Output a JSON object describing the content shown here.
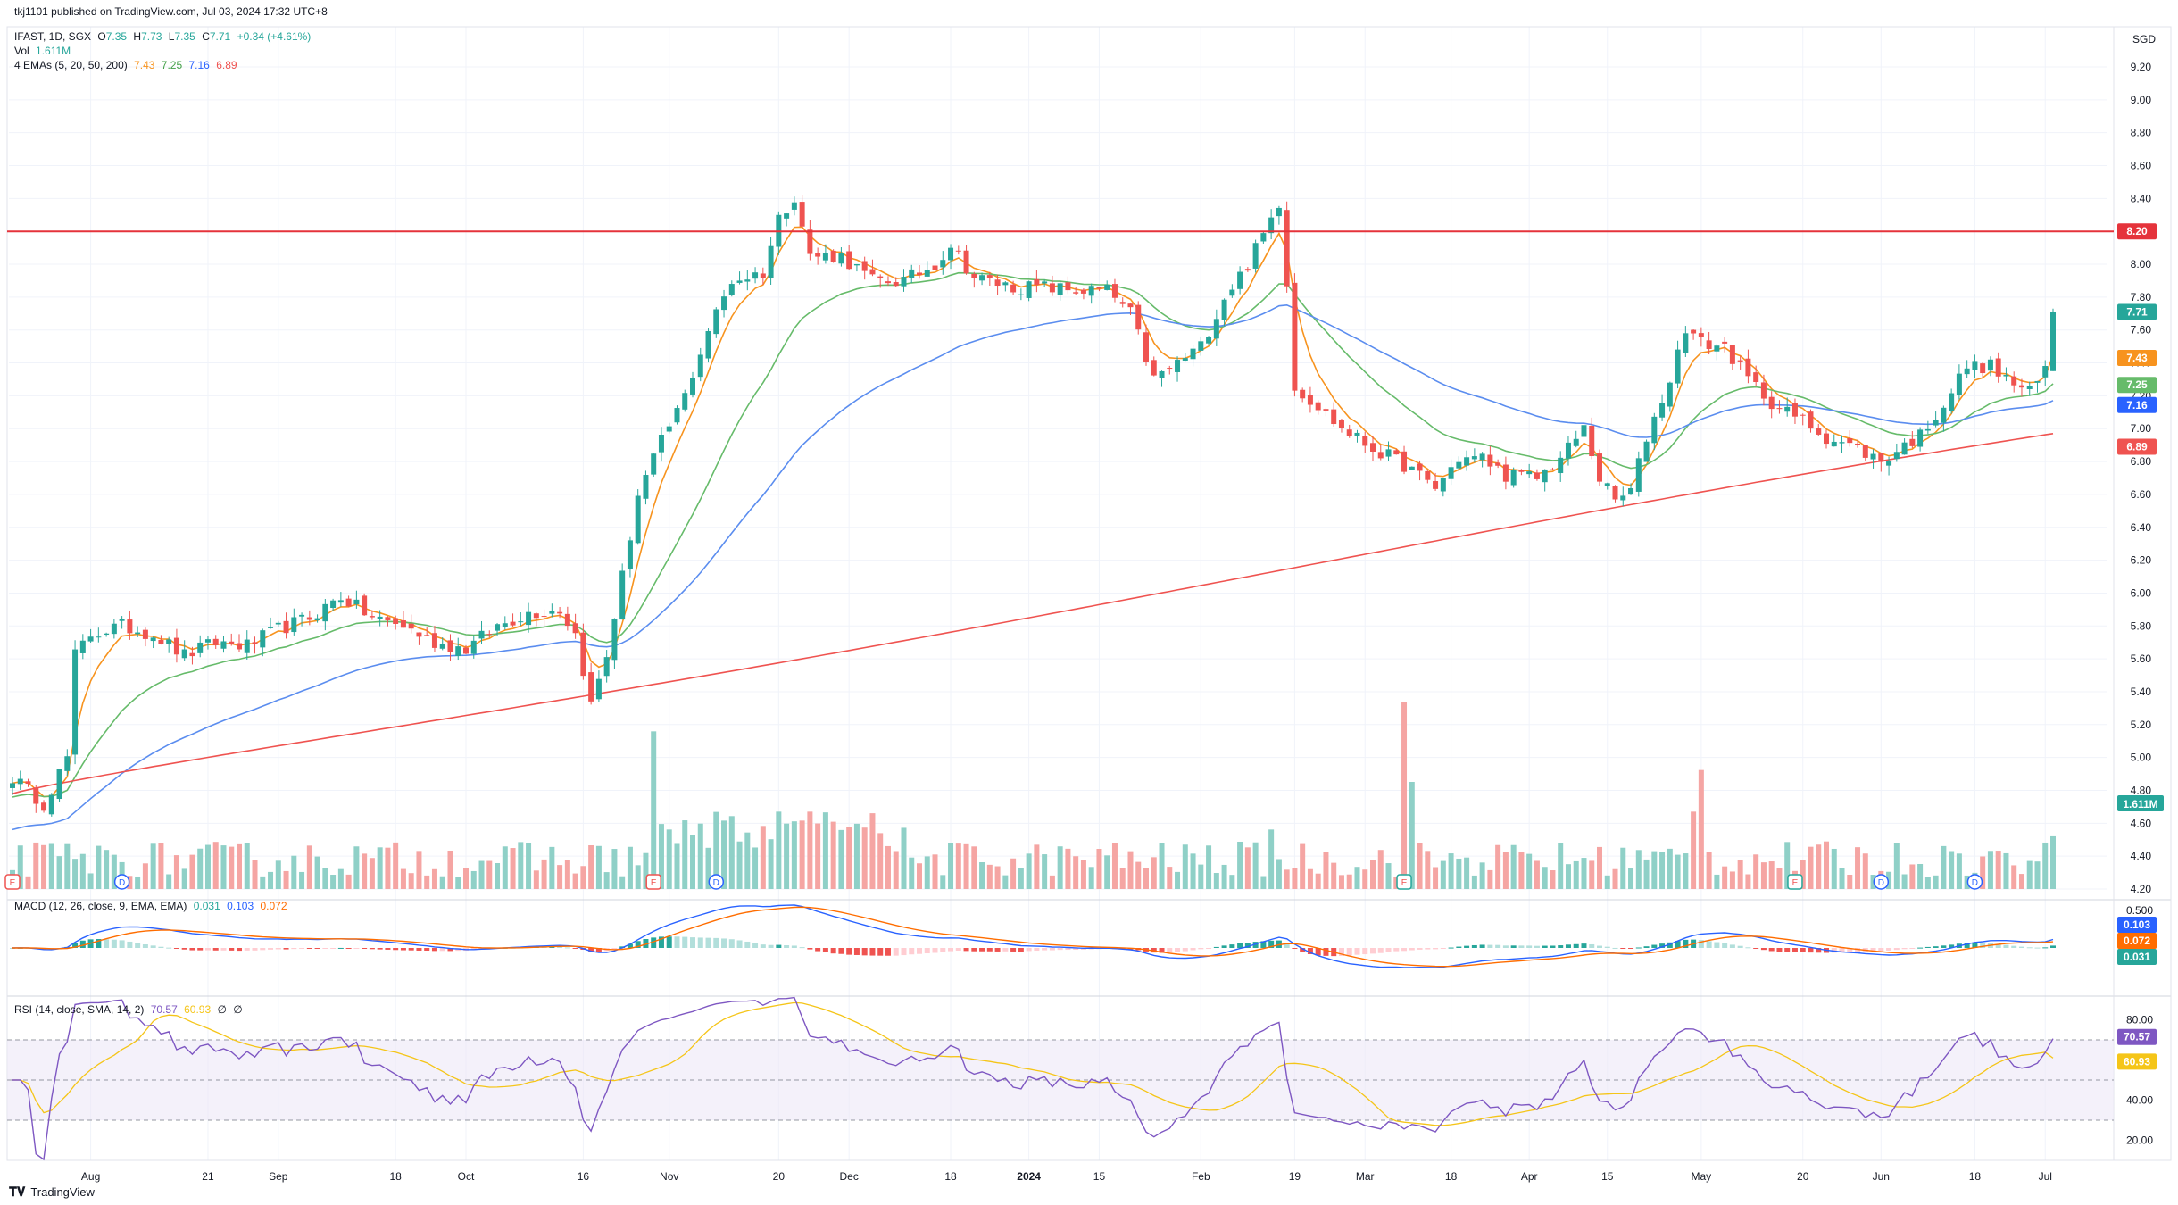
{
  "header": {
    "published": "tkj1101 published on TradingView.com, Jul 03, 2024 17:32 UTC+8",
    "symbol": "IFAST, 1D, SGX",
    "ohlc": {
      "o_label": "O",
      "o": "7.35",
      "h_label": "H",
      "h": "7.73",
      "l_label": "L",
      "l": "7.35",
      "c_label": "C",
      "c": "7.71",
      "change": "+0.34 (+4.61%)"
    },
    "vol_label": "Vol",
    "vol_value": "1.611M",
    "ema_label": "4 EMAs (5, 20, 50, 200)",
    "ema_values": [
      "7.43",
      "7.25",
      "7.16",
      "6.89"
    ]
  },
  "currency": "SGD",
  "colors": {
    "up": "#26a69a",
    "down": "#ef5350",
    "up_vol": "#8fd0c7",
    "down_vol": "#f5a5a3",
    "ema5": "#f7931e",
    "ema20": "#66bb6a",
    "ema50": "#5b8def",
    "ema200": "#ef5350",
    "resistance": "#e5333b",
    "macd": "#2962ff",
    "signal": "#ff6d00",
    "rsi": "#7e57c2",
    "rsi_ma": "#f5c518"
  },
  "resistance": {
    "value": 8.2,
    "label": "8.20"
  },
  "price_tags": [
    {
      "label": "7.71",
      "value": 7.71,
      "color": "#26a69a"
    },
    {
      "label": "7.43",
      "value": 7.43,
      "color": "#f7931e"
    },
    {
      "label": "7.25",
      "value": 7.25,
      "color": "#66bb6a"
    },
    {
      "label": "7.16",
      "value": 7.16,
      "color": "#2962ff"
    },
    {
      "label": "6.89",
      "value": 6.89,
      "color": "#ef5350"
    }
  ],
  "vol_tag": {
    "label": "1.611M",
    "color": "#26a69a"
  },
  "macd": {
    "label": "MACD (12, 26, close, 9, EMA, EMA)",
    "values": [
      "0.031",
      "0.103",
      "0.072"
    ],
    "axis_top": "0.500",
    "tags": [
      {
        "label": "0.103",
        "color": "#2962ff"
      },
      {
        "label": "0.072",
        "color": "#ff6d00"
      },
      {
        "label": "0.031",
        "color": "#26a69a"
      }
    ]
  },
  "rsi": {
    "label": "RSI (14, close, SMA, 14, 2)",
    "values": [
      "70.57",
      "60.93",
      "∅",
      "∅"
    ],
    "ticks": [
      "80.00",
      "60.00",
      "40.00",
      "20.00"
    ],
    "tags": [
      {
        "label": "70.57",
        "color": "#7e57c2"
      },
      {
        "label": "60.93",
        "color": "#f5c518"
      }
    ]
  },
  "events": [
    {
      "type": "E",
      "date": 0
    },
    {
      "type": "D",
      "date": 14
    },
    {
      "type": "E",
      "date": 82
    },
    {
      "type": "D",
      "date": 90
    },
    {
      "type": "E",
      "date": 178
    },
    {
      "type": "E",
      "date": 228
    },
    {
      "type": "D",
      "date": 239
    },
    {
      "type": "D",
      "date": 251
    },
    {
      "type": "⚡",
      "date": 281
    }
  ],
  "footer": {
    "brand": "TradingView"
  },
  "chart_data": {
    "type": "candlestick",
    "title": "IFAST, 1D, SGX",
    "ylim": [
      4.2,
      9.35
    ],
    "y_ticks": [
      "9.20",
      "9.00",
      "8.80",
      "8.60",
      "8.40",
      "8.20",
      "8.00",
      "7.80",
      "7.60",
      "7.40",
      "7.20",
      "7.00",
      "6.80",
      "6.60",
      "6.40",
      "6.20",
      "6.00",
      "5.80",
      "5.60",
      "5.40",
      "5.20",
      "5.00",
      "4.80",
      "4.60",
      "4.40",
      "4.20"
    ],
    "x_ticks": [
      {
        "label": "Aug",
        "i": 10
      },
      {
        "label": "21",
        "i": 25
      },
      {
        "label": "Sep",
        "i": 34
      },
      {
        "label": "18",
        "i": 49
      },
      {
        "label": "Oct",
        "i": 58
      },
      {
        "label": "16",
        "i": 73
      },
      {
        "label": "Nov",
        "i": 84
      },
      {
        "label": "20",
        "i": 98
      },
      {
        "label": "Dec",
        "i": 107
      },
      {
        "label": "18",
        "i": 120
      },
      {
        "label": "2024",
        "i": 130
      },
      {
        "label": "15",
        "i": 139
      },
      {
        "label": "Feb",
        "i": 152
      },
      {
        "label": "19",
        "i": 164
      },
      {
        "label": "Mar",
        "i": 173
      },
      {
        "label": "18",
        "i": 184
      },
      {
        "label": "Apr",
        "i": 194
      },
      {
        "label": "15",
        "i": 204
      },
      {
        "label": "May",
        "i": 216
      },
      {
        "label": "20",
        "i": 229
      },
      {
        "label": "Jun",
        "i": 239
      },
      {
        "label": "18",
        "i": 251
      },
      {
        "label": "Jul",
        "i": 260
      }
    ],
    "anchors": [
      [
        0,
        4.88
      ],
      [
        4,
        4.72
      ],
      [
        7,
        5.0
      ],
      [
        8,
        5.62
      ],
      [
        10,
        5.75
      ],
      [
        14,
        5.8
      ],
      [
        18,
        5.75
      ],
      [
        22,
        5.62
      ],
      [
        26,
        5.7
      ],
      [
        30,
        5.68
      ],
      [
        34,
        5.78
      ],
      [
        38,
        5.85
      ],
      [
        42,
        5.98
      ],
      [
        46,
        5.85
      ],
      [
        50,
        5.8
      ],
      [
        54,
        5.7
      ],
      [
        58,
        5.66
      ],
      [
        62,
        5.8
      ],
      [
        66,
        5.88
      ],
      [
        70,
        5.9
      ],
      [
        72,
        5.75
      ],
      [
        74,
        5.32
      ],
      [
        76,
        5.62
      ],
      [
        78,
        6.1
      ],
      [
        80,
        6.6
      ],
      [
        83,
        6.92
      ],
      [
        86,
        7.2
      ],
      [
        89,
        7.6
      ],
      [
        92,
        7.9
      ],
      [
        96,
        7.95
      ],
      [
        98,
        8.28
      ],
      [
        100,
        8.42
      ],
      [
        102,
        8.05
      ],
      [
        106,
        8.05
      ],
      [
        110,
        7.9
      ],
      [
        114,
        7.9
      ],
      [
        118,
        8.0
      ],
      [
        120,
        8.12
      ],
      [
        123,
        7.92
      ],
      [
        128,
        7.86
      ],
      [
        132,
        7.86
      ],
      [
        136,
        7.84
      ],
      [
        140,
        7.84
      ],
      [
        143,
        7.7
      ],
      [
        146,
        7.3
      ],
      [
        149,
        7.4
      ],
      [
        152,
        7.5
      ],
      [
        155,
        7.8
      ],
      [
        158,
        8.0
      ],
      [
        160,
        8.18
      ],
      [
        162,
        8.38
      ],
      [
        163,
        7.9
      ],
      [
        164,
        7.25
      ],
      [
        166,
        7.18
      ],
      [
        170,
        7.0
      ],
      [
        174,
        6.88
      ],
      [
        178,
        6.78
      ],
      [
        182,
        6.64
      ],
      [
        185,
        6.82
      ],
      [
        188,
        6.82
      ],
      [
        191,
        6.72
      ],
      [
        195,
        6.7
      ],
      [
        198,
        6.82
      ],
      [
        201,
        7.0
      ],
      [
        203,
        6.7
      ],
      [
        205,
        6.56
      ],
      [
        207,
        6.62
      ],
      [
        209,
        6.95
      ],
      [
        212,
        7.3
      ],
      [
        214,
        7.62
      ],
      [
        216,
        7.52
      ],
      [
        219,
        7.5
      ],
      [
        222,
        7.3
      ],
      [
        226,
        7.12
      ],
      [
        229,
        7.05
      ],
      [
        232,
        6.95
      ],
      [
        236,
        6.88
      ],
      [
        239,
        6.8
      ],
      [
        242,
        6.9
      ],
      [
        244,
        6.96
      ],
      [
        247,
        7.15
      ],
      [
        250,
        7.38
      ],
      [
        253,
        7.38
      ],
      [
        255,
        7.3
      ],
      [
        258,
        7.22
      ],
      [
        259,
        7.28
      ],
      [
        260,
        7.37
      ],
      [
        261,
        7.71
      ]
    ],
    "volume_ylim_M": [
      0,
      7.5
    ],
    "macd_ylim": [
      -0.15,
      0.5
    ],
    "rsi_ylim": [
      10,
      90
    ],
    "rsi_levels": [
      70,
      50,
      30
    ]
  }
}
